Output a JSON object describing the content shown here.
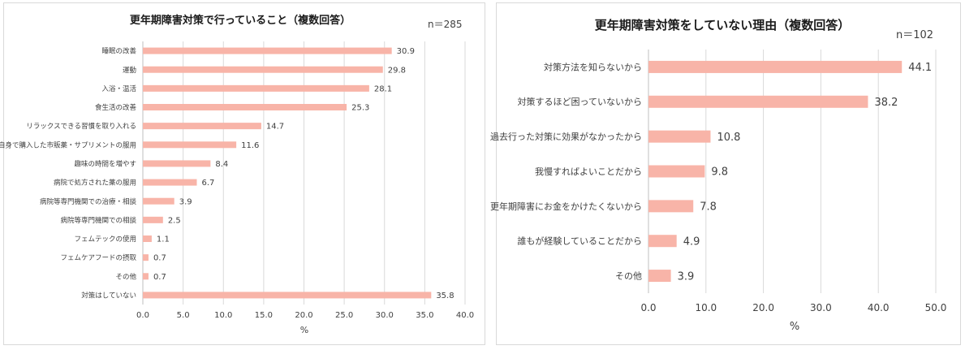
{
  "colors": {
    "bar": "#f8b4a8",
    "grid": "#d9d9d9",
    "text": "#404040",
    "title": "#1a1a1a"
  },
  "chart_data": [
    {
      "type": "bar",
      "orientation": "horizontal",
      "title": "更年期障害対策で行っていること（複数回答）",
      "sample_size": "n＝285",
      "xlabel": "%",
      "xlim": [
        0,
        40
      ],
      "xticks": [
        "0.0",
        "5.0",
        "10.0",
        "15.0",
        "20.0",
        "25.0",
        "30.0",
        "35.0",
        "40.0"
      ],
      "categories": [
        "睡眠の改善",
        "運動",
        "入浴・温活",
        "食生活の改善",
        "リラックスできる習慣を取り入れる",
        "自身で購入した市販薬・サプリメントの服用",
        "趣味の時間を増やす",
        "病院で処方された薬の服用",
        "病院等専門機関での治療・相談",
        "病院等専門機関での相談",
        "フェムテックの使用",
        "フェムケアフードの摂取",
        "その他",
        "対策はしていない"
      ],
      "values": [
        30.9,
        29.8,
        28.1,
        25.3,
        14.7,
        11.6,
        8.4,
        6.7,
        3.9,
        2.5,
        1.1,
        0.7,
        0.7,
        35.8
      ],
      "value_labels": [
        "30.9",
        "29.8",
        "28.1",
        "25.3",
        "14.7",
        "11.6",
        "8.4",
        "6.7",
        "3.9",
        "2.5",
        "1.1",
        "0.7",
        "0.7",
        "35.8"
      ]
    },
    {
      "type": "bar",
      "orientation": "horizontal",
      "title": "更年期障害対策をしていない理由（複数回答）",
      "sample_size": "n＝102",
      "xlabel": "%",
      "xlim": [
        0,
        50
      ],
      "xticks": [
        "0.0",
        "10.0",
        "20.0",
        "30.0",
        "40.0",
        "50.0"
      ],
      "categories": [
        "対策方法を知らないから",
        "対策するほど困っていないから",
        "過去行った対策に効果がなかったから",
        "我慢すればよいことだから",
        "更年期障害にお金をかけたくないから",
        "誰もが経験していることだから",
        "その他"
      ],
      "values": [
        44.1,
        38.2,
        10.8,
        9.8,
        7.8,
        4.9,
        3.9
      ],
      "value_labels": [
        "44.1",
        "38.2",
        "10.8",
        "9.8",
        "7.8",
        "4.9",
        "3.9"
      ]
    }
  ]
}
